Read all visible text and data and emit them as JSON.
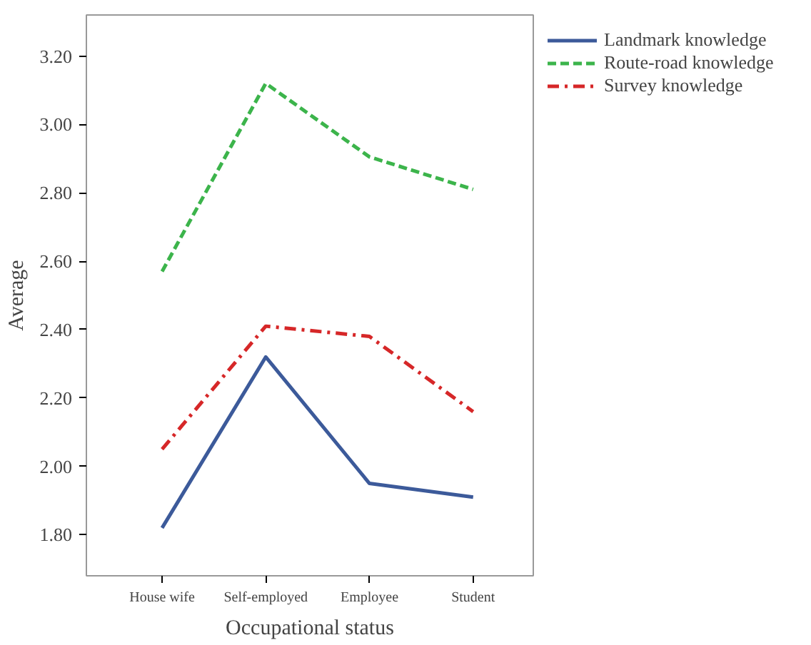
{
  "chart_data": {
    "type": "line",
    "xlabel": "Occupational status",
    "ylabel": "Average",
    "categories": [
      "House wife",
      "Self-employed",
      "Employee",
      "Student"
    ],
    "series": [
      {
        "name": "Landmark knowledge",
        "color": "#3c5a9a",
        "line_style": "solid",
        "values": [
          1.82,
          2.32,
          1.95,
          1.91
        ]
      },
      {
        "name": "Route-road knowledge",
        "color": "#3cb44b",
        "line_style": "dashed",
        "values": [
          2.57,
          3.12,
          2.905,
          2.81
        ]
      },
      {
        "name": "Survey knowledge",
        "color": "#d62728",
        "line_style": "dashdot",
        "values": [
          2.05,
          2.41,
          2.38,
          2.16
        ]
      }
    ],
    "ylim": [
      1.68,
      3.32
    ],
    "yticks": [
      {
        "value": 1.8,
        "label": "1.80"
      },
      {
        "value": 2.0,
        "label": "2.00"
      },
      {
        "value": 2.2,
        "label": "2.20"
      },
      {
        "value": 2.4,
        "label": "2.40"
      },
      {
        "value": 2.6,
        "label": "2.60"
      },
      {
        "value": 2.8,
        "label": "2.80"
      },
      {
        "value": 3.0,
        "label": "3.00"
      },
      {
        "value": 3.2,
        "label": "3.20"
      }
    ],
    "grid": false,
    "legend": "right",
    "marker": "none"
  }
}
